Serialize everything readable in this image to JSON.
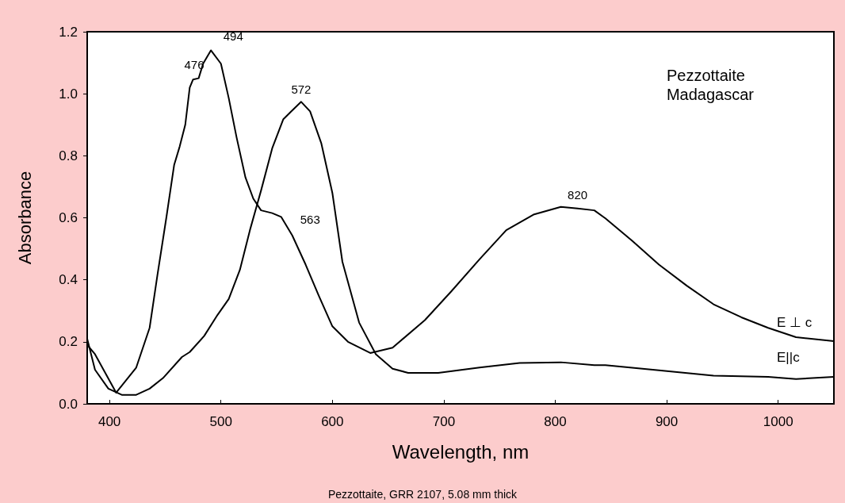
{
  "chart_data": {
    "type": "line",
    "title": "Pezzottaite\nMadagascar",
    "xlabel": "Wavelength, nm",
    "ylabel": "Absorbance",
    "xlim": [
      380,
      1050
    ],
    "xticks": [
      400,
      500,
      600,
      700,
      800,
      900,
      1000
    ],
    "ylim": [
      0,
      1.2
    ],
    "yticks": [
      {
        "value": 0,
        "label": "0.0"
      },
      0.2,
      0.4,
      0.6,
      0.8,
      {
        "value": 1,
        "label": "1.0"
      },
      1.2
    ],
    "grid": false,
    "legend": false,
    "marker": "none",
    "line_style": "solid",
    "series": [
      {
        "name": "E ⊥ c",
        "color": "#000000",
        "x": [
          380,
          387,
          406,
          424,
          436,
          443,
          451,
          458,
          463,
          468,
          472,
          475,
          480,
          484,
          491,
          500,
          507,
          514,
          522,
          529,
          536,
          546,
          554,
          564,
          576,
          588,
          600,
          614,
          634,
          654,
          683,
          707,
          732,
          756,
          781,
          805,
          820,
          835,
          845,
          869,
          893,
          918,
          942,
          967,
          991,
          1016,
          1050
        ],
        "values": [
          0.19,
          0.16,
          0.036,
          0.117,
          0.245,
          0.415,
          0.6,
          0.77,
          0.83,
          0.9,
          1.02,
          1.046,
          1.05,
          1.097,
          1.14,
          1.097,
          0.986,
          0.86,
          0.73,
          0.662,
          0.624,
          0.615,
          0.603,
          0.543,
          0.449,
          0.347,
          0.25,
          0.2,
          0.164,
          0.181,
          0.27,
          0.364,
          0.466,
          0.56,
          0.611,
          0.635,
          0.63,
          0.624,
          0.598,
          0.526,
          0.449,
          0.381,
          0.321,
          0.279,
          0.245,
          0.215,
          0.202
        ]
      },
      {
        "name": "E||c",
        "color": "#000000",
        "x": [
          380,
          387,
          399,
          411,
          424,
          436,
          448,
          465,
          472,
          485,
          497,
          507,
          517,
          526,
          536,
          546,
          556,
          563,
          572,
          580,
          590,
          600,
          609,
          624,
          639,
          654,
          668,
          695,
          732,
          768,
          805,
          835,
          845,
          893,
          942,
          991,
          1016,
          1050
        ],
        "values": [
          0.21,
          0.11,
          0.049,
          0.029,
          0.029,
          0.049,
          0.083,
          0.151,
          0.167,
          0.219,
          0.287,
          0.338,
          0.432,
          0.56,
          0.688,
          0.824,
          0.918,
          0.943,
          0.974,
          0.943,
          0.841,
          0.68,
          0.458,
          0.262,
          0.16,
          0.113,
          0.1,
          0.1,
          0.117,
          0.132,
          0.134,
          0.125,
          0.125,
          0.108,
          0.091,
          0.087,
          0.08,
          0.087
        ]
      }
    ],
    "annotations": [
      {
        "text": "476",
        "x": 476,
        "y": 1.05
      },
      {
        "text": "494",
        "x": 494,
        "y": 1.14
      },
      {
        "text": "572",
        "x": 572,
        "y": 0.97
      },
      {
        "text": "563",
        "x": 563,
        "y": 0.55
      },
      {
        "text": "820",
        "x": 820,
        "y": 0.63
      },
      "Pezzottaite, GRR 2107, 5.08 mm thick"
    ]
  }
}
